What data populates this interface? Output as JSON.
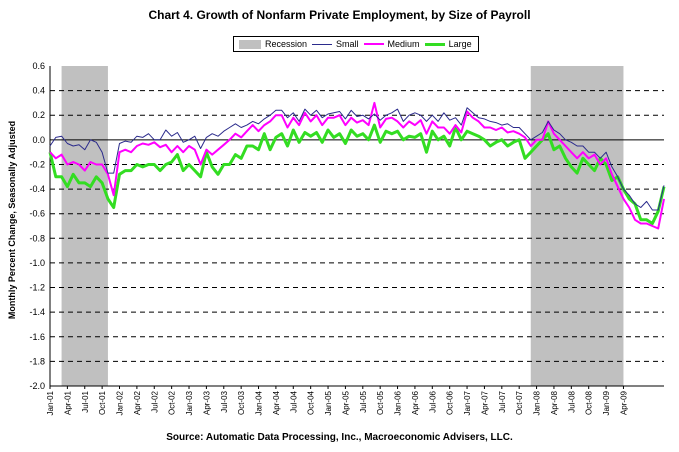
{
  "title": "Chart 4.  Growth of Nonfarm Private Employment, by Size of Payroll",
  "source": "Source: Automatic Data Processing, Inc., Macroeconomic Advisers, LLC.",
  "colors": {
    "small": "#2b2b8c",
    "medium": "#ff00ff",
    "large": "#33dd22",
    "recession": "#c0c0c0"
  },
  "chart_data": {
    "type": "line",
    "title": "Chart 4.  Growth of Nonfarm Private Employment, by Size of Payroll",
    "xlabel": "",
    "ylabel": "Monthly Percent Change, Seasonally Adjusted",
    "ylim": [
      -2.0,
      0.6
    ],
    "yticks": [
      0.6,
      0.4,
      0.2,
      0.0,
      -0.2,
      -0.4,
      -0.6,
      -0.8,
      -1.0,
      -1.2,
      -1.4,
      -1.6,
      -1.8,
      -2.0
    ],
    "ytick_labels": [
      "0.6",
      "0.4",
      "0.2",
      "0.0",
      "-0.2",
      "-0.4",
      "-0.6",
      "-0.8",
      "-1.0",
      "-1.2",
      "-1.4",
      "-1.6",
      "-1.8",
      "-2.0"
    ],
    "x_start": "Jan-01",
    "xtick_labels": [
      "Jan-01",
      "Apr-01",
      "Jul-01",
      "Oct-01",
      "Jan-02",
      "Apr-02",
      "Jul-02",
      "Oct-02",
      "Jan-03",
      "Apr-03",
      "Jul-03",
      "Oct-03",
      "Jan-04",
      "Apr-04",
      "Jul-04",
      "Oct-04",
      "Jan-05",
      "Apr-05",
      "Jul-05",
      "Oct-05",
      "Jan-06",
      "Apr-06",
      "Jul-06",
      "Oct-06",
      "Jan-07",
      "Apr-07",
      "Jul-07",
      "Oct-07",
      "Jan-08",
      "Apr-08",
      "Jul-08",
      "Oct-08",
      "Jan-09",
      "Apr-09"
    ],
    "grid": "dashed horizontal",
    "legend_position": "top-center",
    "recessions": [
      {
        "label": "Recession",
        "start": "Mar-01",
        "end": "Nov-01"
      },
      {
        "label": "Recession",
        "start": "Dec-07",
        "end": "Apr-09"
      }
    ],
    "series": [
      {
        "name": "Small",
        "values": [
          -0.05,
          0.02,
          0.03,
          -0.03,
          -0.05,
          -0.04,
          -0.08,
          0.0,
          -0.02,
          -0.1,
          -0.27,
          -0.27,
          -0.03,
          -0.01,
          -0.02,
          0.03,
          0.02,
          0.05,
          0.0,
          0.0,
          0.08,
          0.03,
          0.06,
          -0.02,
          0.0,
          0.03,
          -0.07,
          0.02,
          0.05,
          0.03,
          0.07,
          0.1,
          0.13,
          0.1,
          0.12,
          0.15,
          0.13,
          0.17,
          0.2,
          0.24,
          0.24,
          0.18,
          0.22,
          0.15,
          0.25,
          0.2,
          0.24,
          0.18,
          0.21,
          0.22,
          0.23,
          0.17,
          0.24,
          0.19,
          0.2,
          0.17,
          0.21,
          0.16,
          0.2,
          0.22,
          0.25,
          0.15,
          0.2,
          0.22,
          0.2,
          0.15,
          0.2,
          0.15,
          0.22,
          0.16,
          0.18,
          0.12,
          0.26,
          0.22,
          0.18,
          0.17,
          0.15,
          0.14,
          0.12,
          0.13,
          0.1,
          0.1,
          0.05,
          0.0,
          0.03,
          0.06,
          0.15,
          0.08,
          0.05,
          0.0,
          -0.02,
          -0.05,
          -0.05,
          -0.1,
          -0.1,
          -0.15,
          -0.1,
          -0.22,
          -0.3,
          -0.4,
          -0.45,
          -0.52,
          -0.55,
          -0.5,
          -0.57,
          -0.57,
          -0.37
        ]
      },
      {
        "name": "Medium",
        "values": [
          -0.1,
          -0.15,
          -0.12,
          -0.2,
          -0.18,
          -0.2,
          -0.25,
          -0.18,
          -0.2,
          -0.2,
          -0.28,
          -0.45,
          -0.1,
          -0.08,
          -0.1,
          -0.05,
          -0.03,
          -0.04,
          -0.02,
          -0.06,
          -0.04,
          -0.1,
          -0.05,
          -0.1,
          -0.05,
          -0.08,
          -0.2,
          -0.08,
          -0.12,
          -0.08,
          -0.04,
          0.0,
          0.05,
          0.02,
          0.07,
          0.12,
          0.07,
          0.12,
          0.15,
          0.2,
          0.2,
          0.1,
          0.18,
          0.12,
          0.22,
          0.15,
          0.2,
          0.12,
          0.18,
          0.18,
          0.2,
          0.12,
          0.18,
          0.14,
          0.16,
          0.12,
          0.3,
          0.1,
          0.17,
          0.18,
          0.15,
          0.1,
          0.15,
          0.12,
          0.16,
          0.05,
          0.15,
          0.1,
          0.1,
          0.05,
          0.12,
          0.06,
          0.23,
          0.18,
          0.15,
          0.1,
          0.1,
          0.08,
          0.1,
          0.06,
          0.07,
          0.05,
          0.02,
          -0.05,
          0.0,
          0.0,
          0.15,
          0.05,
          0.0,
          -0.05,
          -0.1,
          -0.15,
          -0.1,
          -0.15,
          -0.12,
          -0.2,
          -0.15,
          -0.28,
          -0.38,
          -0.48,
          -0.55,
          -0.65,
          -0.68,
          -0.68,
          -0.7,
          -0.72,
          -0.48
        ]
      },
      {
        "name": "Large",
        "values": [
          -0.1,
          -0.3,
          -0.3,
          -0.38,
          -0.28,
          -0.35,
          -0.35,
          -0.38,
          -0.3,
          -0.35,
          -0.48,
          -0.55,
          -0.28,
          -0.25,
          -0.25,
          -0.2,
          -0.22,
          -0.2,
          -0.2,
          -0.25,
          -0.2,
          -0.18,
          -0.12,
          -0.25,
          -0.2,
          -0.25,
          -0.3,
          -0.1,
          -0.22,
          -0.28,
          -0.2,
          -0.2,
          -0.12,
          -0.15,
          -0.05,
          -0.05,
          -0.08,
          0.05,
          -0.08,
          0.02,
          0.05,
          -0.05,
          0.08,
          -0.02,
          0.06,
          0.03,
          0.06,
          -0.02,
          0.08,
          0.02,
          0.05,
          -0.03,
          0.08,
          0.03,
          0.05,
          0.0,
          0.12,
          -0.02,
          0.07,
          0.05,
          0.07,
          0.0,
          0.03,
          0.02,
          0.05,
          -0.1,
          0.07,
          0.0,
          0.03,
          -0.05,
          0.1,
          0.0,
          0.07,
          0.05,
          0.03,
          0.0,
          -0.05,
          -0.02,
          0.0,
          -0.05,
          -0.02,
          0.0,
          -0.15,
          -0.1,
          -0.05,
          0.0,
          0.05,
          -0.08,
          -0.05,
          -0.15,
          -0.22,
          -0.27,
          -0.15,
          -0.2,
          -0.25,
          -0.15,
          -0.2,
          -0.33,
          -0.3,
          -0.4,
          -0.48,
          -0.52,
          -0.65,
          -0.65,
          -0.68,
          -0.58,
          -0.38
        ]
      }
    ]
  },
  "legend": {
    "recession": "Recession",
    "small": "Small",
    "medium": "Medium",
    "large": "Large"
  }
}
